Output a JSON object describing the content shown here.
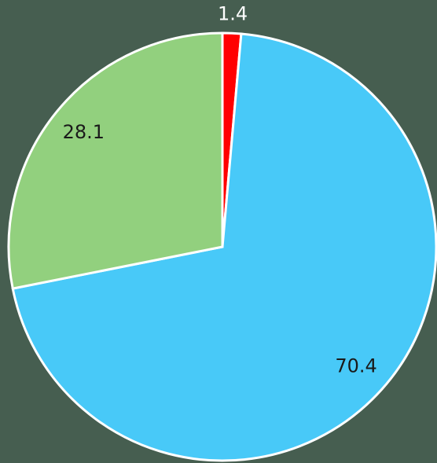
{
  "chart_data": {
    "type": "pie",
    "series": [
      {
        "values": [
          1.4,
          70.4,
          28.1
        ],
        "colors": [
          "#ff0000",
          "#48c9f8",
          "#92d07e"
        ]
      }
    ]
  }
}
